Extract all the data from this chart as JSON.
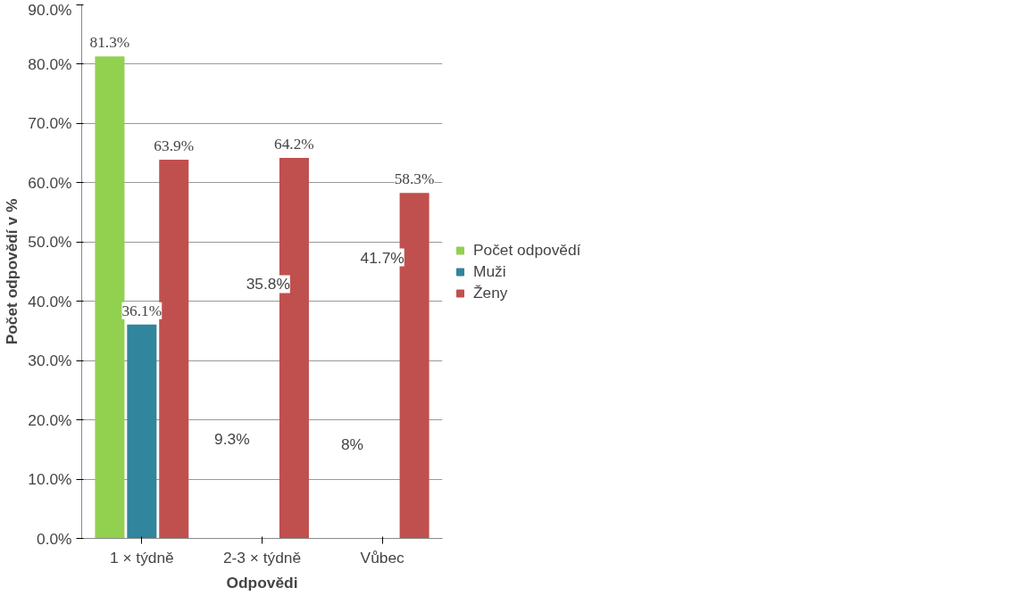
{
  "chart_data": {
    "type": "bar",
    "xlabel": "Odpovědi",
    "ylabel": "Počet odpovědí v %",
    "categories": [
      "1 × týdně",
      "2-3 × týdně",
      "Vůbec"
    ],
    "series": [
      {
        "name": "Počet odpovědí",
        "color": "#92d050",
        "values": [
          81.3,
          null,
          null
        ],
        "value_labels": [
          "81.3%",
          null,
          null
        ]
      },
      {
        "name": "Muži",
        "color": "#31859c",
        "values": [
          36.1,
          null,
          null
        ],
        "value_labels": [
          "36.1%",
          null,
          null
        ]
      },
      {
        "name": "Ženy",
        "color": "#c0504d",
        "values": [
          63.9,
          64.2,
          58.3
        ],
        "value_labels": [
          "63.9%",
          "64.2%",
          "58.3%"
        ]
      }
    ],
    "ylim": [
      0,
      90
    ],
    "yticks": [
      {
        "value": 0,
        "label": "0.0%"
      },
      {
        "value": 10,
        "label": "10.0%"
      },
      {
        "value": 20,
        "label": "20.0%"
      },
      {
        "value": 30,
        "label": "30.0%"
      },
      {
        "value": 40,
        "label": "40.0%"
      },
      {
        "value": 50,
        "label": "50.0%"
      },
      {
        "value": 60,
        "label": "60.0%"
      },
      {
        "value": 70,
        "label": "70.0%"
      },
      {
        "value": 80,
        "label": "80.0%"
      },
      {
        "value": 90,
        "label": "90.0%"
      }
    ],
    "annotations": [
      "9.3%",
      "35.8%",
      "8%",
      "41.7%"
    ],
    "grid": "y",
    "legend": "right"
  }
}
